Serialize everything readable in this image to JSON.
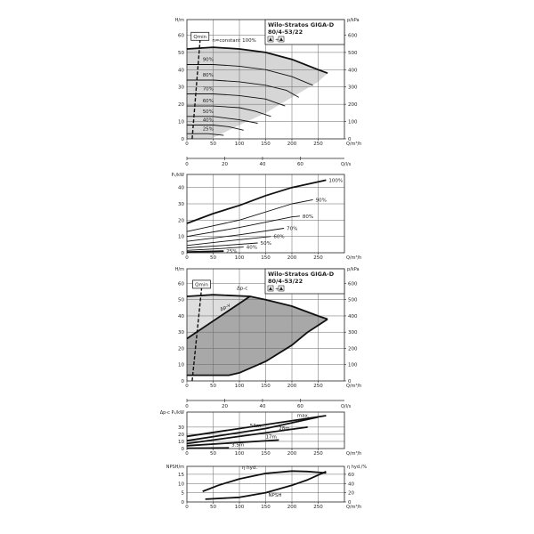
{
  "header": {
    "title": "Wilo-Stratos GIGA-D",
    "model": "80/4-53/22",
    "symbols": "pump-icon + pump-icon",
    "qmin_label": "Qmin"
  },
  "chart_data": [
    {
      "type": "line",
      "id": "head-curves-speed",
      "ylabel": "H/m",
      "y2label": "p/kPa",
      "xlabel": "Q/m³/h",
      "xlim": [
        0,
        300
      ],
      "ylim": [
        0,
        69
      ],
      "y2lim": [
        0,
        690
      ],
      "xticks": [
        0,
        50,
        100,
        150,
        200,
        250
      ],
      "yticks": [
        0,
        10,
        20,
        30,
        40,
        50,
        60
      ],
      "y2ticks": [
        0,
        100,
        200,
        300,
        400,
        500,
        600
      ],
      "secondary_x": {
        "label": "Q/l/s",
        "ticks": [
          0,
          20,
          40,
          60
        ]
      },
      "grid": true,
      "annotation": "n=constant 100%",
      "shaded_region": [
        [
          0,
          52
        ],
        [
          50,
          53
        ],
        [
          100,
          52
        ],
        [
          150,
          50
        ],
        [
          200,
          46
        ],
        [
          250,
          40
        ],
        [
          268,
          38
        ],
        [
          250,
          33
        ],
        [
          200,
          24
        ],
        [
          150,
          15
        ],
        [
          100,
          8
        ],
        [
          60,
          2
        ],
        [
          45,
          0
        ],
        [
          0,
          0
        ]
      ],
      "qmin_line": [
        [
          10,
          0
        ],
        [
          25,
          57
        ]
      ],
      "series": [
        {
          "name": "100%",
          "bold": true,
          "points": [
            [
              0,
              52
            ],
            [
              50,
              53
            ],
            [
              100,
              52
            ],
            [
              150,
              50
            ],
            [
              200,
              46
            ],
            [
              250,
              40
            ],
            [
              268,
              38
            ]
          ],
          "label_at": null
        },
        {
          "name": "90%",
          "points": [
            [
              0,
              43
            ],
            [
              50,
              43
            ],
            [
              100,
              42
            ],
            [
              150,
              40
            ],
            [
              200,
              36
            ],
            [
              240,
              31
            ]
          ],
          "label_at": [
            30,
            45
          ]
        },
        {
          "name": "80%",
          "points": [
            [
              0,
              34
            ],
            [
              50,
              34
            ],
            [
              100,
              33
            ],
            [
              150,
              31
            ],
            [
              190,
              28
            ],
            [
              213,
              24
            ]
          ],
          "label_at": [
            30,
            36
          ]
        },
        {
          "name": "70%",
          "points": [
            [
              0,
              26
            ],
            [
              50,
              26
            ],
            [
              100,
              25
            ],
            [
              150,
              23
            ],
            [
              187,
              19
            ]
          ],
          "label_at": [
            30,
            28
          ]
        },
        {
          "name": "60%",
          "points": [
            [
              0,
              19
            ],
            [
              50,
              19
            ],
            [
              100,
              18
            ],
            [
              130,
              16
            ],
            [
              160,
              13
            ]
          ],
          "label_at": [
            30,
            21
          ]
        },
        {
          "name": "50%",
          "points": [
            [
              0,
              13
            ],
            [
              50,
              13
            ],
            [
              100,
              11
            ],
            [
              135,
              9
            ]
          ],
          "label_at": [
            30,
            15
          ]
        },
        {
          "name": "40%",
          "points": [
            [
              0,
              8
            ],
            [
              50,
              8
            ],
            [
              80,
              7
            ],
            [
              108,
              5
            ]
          ],
          "label_at": [
            30,
            10
          ]
        },
        {
          "name": "25%",
          "points": [
            [
              0,
              3
            ],
            [
              40,
              3
            ],
            [
              70,
              2
            ]
          ],
          "label_at": [
            30,
            5
          ]
        }
      ]
    },
    {
      "type": "line",
      "id": "power-curves-speed",
      "ylabel": "P₁/kW",
      "xlabel": "Q/m³/h",
      "xlim": [
        0,
        300
      ],
      "ylim": [
        0,
        48
      ],
      "xticks": [
        0,
        50,
        100,
        150,
        200,
        250
      ],
      "yticks": [
        0,
        10,
        20,
        30,
        40
      ],
      "grid": true,
      "series": [
        {
          "name": "100%",
          "bold": true,
          "points": [
            [
              0,
              18
            ],
            [
              50,
              24
            ],
            [
              100,
              29
            ],
            [
              150,
              35
            ],
            [
              200,
              40
            ],
            [
              265,
              44.5
            ]
          ]
        },
        {
          "name": "90%",
          "points": [
            [
              0,
              13
            ],
            [
              100,
              20
            ],
            [
              200,
              30
            ],
            [
              240,
              32.5
            ]
          ]
        },
        {
          "name": "80%",
          "points": [
            [
              0,
              10
            ],
            [
              100,
              15.5
            ],
            [
              200,
              22
            ],
            [
              215,
              22.5
            ]
          ]
        },
        {
          "name": "70%",
          "points": [
            [
              0,
              7
            ],
            [
              100,
              11
            ],
            [
              185,
              15
            ]
          ]
        },
        {
          "name": "60%",
          "points": [
            [
              0,
              4.5
            ],
            [
              100,
              8
            ],
            [
              160,
              10
            ]
          ]
        },
        {
          "name": "50%",
          "points": [
            [
              0,
              3
            ],
            [
              70,
              4.5
            ],
            [
              135,
              6
            ]
          ]
        },
        {
          "name": "40%",
          "points": [
            [
              0,
              1.5
            ],
            [
              60,
              2.5
            ],
            [
              108,
              3.5
            ]
          ]
        },
        {
          "name": "25%",
          "bold": true,
          "points": [
            [
              0,
              0.5
            ],
            [
              70,
              1
            ]
          ]
        }
      ]
    },
    {
      "type": "area",
      "id": "head-control-range",
      "ylabel": "H/m",
      "y2label": "p/kPa",
      "xlabel": "Q/m³/h",
      "xlim": [
        0,
        300
      ],
      "ylim": [
        0,
        69
      ],
      "y2lim": [
        0,
        690
      ],
      "xticks": [
        0,
        50,
        100,
        150,
        200,
        250
      ],
      "yticks": [
        0,
        10,
        20,
        30,
        40,
        50,
        60
      ],
      "y2ticks": [
        0,
        100,
        200,
        300,
        400,
        500,
        600
      ],
      "secondary_x": {
        "label": "Q/l/s",
        "ticks": [
          0,
          20,
          40,
          60
        ]
      },
      "grid": true,
      "light_region": [
        [
          0,
          52
        ],
        [
          50,
          53
        ],
        [
          120,
          52
        ],
        [
          0,
          26
        ]
      ],
      "dark_region": [
        [
          0,
          26
        ],
        [
          120,
          52
        ],
        [
          150,
          50
        ],
        [
          200,
          46
        ],
        [
          250,
          40
        ],
        [
          268,
          38
        ],
        [
          230,
          30
        ],
        [
          200,
          22
        ],
        [
          150,
          12
        ],
        [
          100,
          5
        ],
        [
          80,
          3.5
        ],
        [
          0,
          3.5
        ]
      ],
      "qmin_line": [
        [
          10,
          0
        ],
        [
          28,
          57
        ]
      ],
      "series": [
        {
          "name": "Δp-c",
          "bold": true,
          "points": [
            [
              0,
              52
            ],
            [
              50,
              53
            ],
            [
              120,
              52
            ],
            [
              150,
              50
            ],
            [
              200,
              46
            ],
            [
              250,
              40
            ],
            [
              268,
              38
            ]
          ],
          "label_at": [
            95,
            56
          ]
        },
        {
          "name": "Δp-v",
          "bold": true,
          "points": [
            [
              0,
              26
            ],
            [
              120,
              52
            ]
          ],
          "label_at": [
            65,
            43
          ]
        },
        {
          "name": "",
          "bold": true,
          "points": [
            [
              268,
              38
            ],
            [
              230,
              30
            ],
            [
              200,
              22
            ],
            [
              150,
              12
            ],
            [
              100,
              5
            ],
            [
              80,
              3.5
            ],
            [
              0,
              3.5
            ]
          ]
        }
      ]
    },
    {
      "type": "line",
      "id": "power-control-range",
      "ylabel": "Δp-c P₁/kW",
      "xlabel": "Q/m³/h",
      "xlim": [
        0,
        300
      ],
      "ylim": [
        0,
        51
      ],
      "xticks": [
        0,
        50,
        100,
        150,
        200,
        250
      ],
      "yticks": [
        0,
        10,
        20,
        30
      ],
      "grid": true,
      "series": [
        {
          "name": "max.",
          "bold": true,
          "points": [
            [
              0,
              17
            ],
            [
              265,
              46
            ]
          ],
          "label_at": [
            210,
            44
          ]
        },
        {
          "name": "53m",
          "bold": true,
          "points": [
            [
              0,
              11
            ],
            [
              150,
              28
            ],
            [
              250,
              44
            ]
          ],
          "label_at": [
            120,
            30
          ]
        },
        {
          "name": "28m",
          "bold": true,
          "points": [
            [
              0,
              7
            ],
            [
              230,
              30
            ]
          ],
          "label_at": [
            175,
            26
          ]
        },
        {
          "name": "17m",
          "bold": true,
          "points": [
            [
              0,
              4
            ],
            [
              175,
              12
            ]
          ],
          "label_at": [
            150,
            14
          ]
        },
        {
          "name": "3.5m",
          "bold": true,
          "points": [
            [
              0,
              0.5
            ],
            [
              80,
              1
            ]
          ],
          "label_at": [
            85,
            3
          ]
        }
      ]
    },
    {
      "type": "line",
      "id": "npsh-efficiency",
      "ylabel": "NPSH/m",
      "y2label": "η hyd./%",
      "xlabel": "Q/m³/h",
      "xlim": [
        0,
        300
      ],
      "ylim": [
        0,
        19.3
      ],
      "y2lim": [
        0,
        77.2
      ],
      "xticks": [
        0,
        50,
        100,
        150,
        200,
        250
      ],
      "yticks": [
        0,
        5,
        10,
        15
      ],
      "y2ticks": [
        0,
        20,
        40,
        60
      ],
      "grid": true,
      "series": [
        {
          "name": "η hyd.",
          "bold": true,
          "axis": "right",
          "points": [
            [
              30,
              23
            ],
            [
              60,
              36
            ],
            [
              100,
              50
            ],
            [
              150,
              62
            ],
            [
              200,
              67
            ],
            [
              230,
              66
            ],
            [
              265,
              63
            ]
          ],
          "label_at": [
            105,
            71
          ]
        },
        {
          "name": "NPSH",
          "bold": true,
          "axis": "left",
          "points": [
            [
              35,
              1.5
            ],
            [
              100,
              2.5
            ],
            [
              150,
              5
            ],
            [
              200,
              9
            ],
            [
              230,
              12
            ],
            [
              265,
              16.5
            ]
          ],
          "label_at": [
            155,
            3
          ]
        }
      ]
    }
  ]
}
